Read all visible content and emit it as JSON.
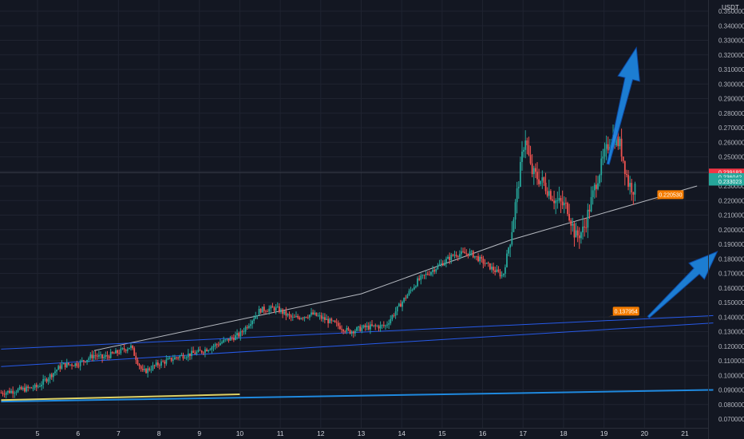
{
  "chart_data": {
    "type": "candlestick",
    "currency": "USDT",
    "ylim": [
      0.065,
      0.355
    ],
    "y_ticks": [
      0.07,
      0.08,
      0.09,
      0.1,
      0.11,
      0.12,
      0.13,
      0.14,
      0.15,
      0.16,
      0.17,
      0.18,
      0.19,
      0.2,
      0.21,
      0.22,
      0.23,
      0.24,
      0.25,
      0.26,
      0.27,
      0.28,
      0.29,
      0.3,
      0.31,
      0.32,
      0.33,
      0.34,
      0.35
    ],
    "y_tick_labels": [
      "0.070000",
      "0.080000",
      "0.090000",
      "0.100000",
      "0.110000",
      "0.120000",
      "0.130000",
      "0.140000",
      "0.150000",
      "0.160000",
      "0.170000",
      "0.180000",
      "0.190000",
      "0.200000",
      "0.210000",
      "0.220000",
      "0.230000",
      "0.240000",
      "0.250000",
      "0.260000",
      "0.270000",
      "0.280000",
      "0.290000",
      "0.300000",
      "0.310000",
      "0.320000",
      "0.330000",
      "0.340000",
      "0.350000"
    ],
    "x_ticks": [
      "5",
      "6",
      "7",
      "8",
      "9",
      "10",
      "11",
      "12",
      "13",
      "14",
      "15",
      "16",
      "17",
      "18",
      "19",
      "20",
      "21"
    ],
    "xlim": [
      4.1,
      21.7
    ],
    "price_path": [
      [
        4.1,
        0.088
      ],
      [
        5.0,
        0.092
      ],
      [
        5.6,
        0.107
      ],
      [
        6.0,
        0.108
      ],
      [
        6.4,
        0.114
      ],
      [
        6.6,
        0.112
      ],
      [
        7.0,
        0.116
      ],
      [
        7.3,
        0.12
      ],
      [
        7.6,
        0.102
      ],
      [
        8.0,
        0.108
      ],
      [
        8.5,
        0.113
      ],
      [
        9.0,
        0.116
      ],
      [
        9.5,
        0.122
      ],
      [
        10.0,
        0.128
      ],
      [
        10.5,
        0.145
      ],
      [
        10.9,
        0.146
      ],
      [
        11.3,
        0.139
      ],
      [
        11.8,
        0.142
      ],
      [
        12.3,
        0.136
      ],
      [
        12.7,
        0.13
      ],
      [
        13.1,
        0.133
      ],
      [
        13.6,
        0.134
      ],
      [
        14.0,
        0.15
      ],
      [
        14.4,
        0.165
      ],
      [
        14.9,
        0.175
      ],
      [
        15.3,
        0.183
      ],
      [
        15.7,
        0.184
      ],
      [
        16.1,
        0.176
      ],
      [
        16.5,
        0.168
      ],
      [
        16.7,
        0.196
      ],
      [
        16.9,
        0.235
      ],
      [
        17.05,
        0.265
      ],
      [
        17.2,
        0.24
      ],
      [
        17.5,
        0.232
      ],
      [
        17.8,
        0.22
      ],
      [
        18.1,
        0.215
      ],
      [
        18.3,
        0.195
      ],
      [
        18.5,
        0.2
      ],
      [
        18.8,
        0.232
      ],
      [
        19.0,
        0.25
      ],
      [
        19.2,
        0.265
      ],
      [
        19.4,
        0.258
      ],
      [
        19.6,
        0.232
      ],
      [
        19.8,
        0.226
      ]
    ],
    "current_price_labels": [
      "0.239183",
      "0.236042",
      "0.233023"
    ],
    "annotations": [
      {
        "label": "0.220530",
        "x": 20.2,
        "y": 0.2205
      },
      {
        "label": "0.137954",
        "x": 19.1,
        "y": 0.1405
      }
    ],
    "trendlines": [
      {
        "color": "#c8cbd2",
        "points": [
          [
            6.4,
            0.117
          ],
          [
            13.0,
            0.156
          ],
          [
            16.7,
            0.193
          ],
          [
            21.3,
            0.23
          ]
        ]
      },
      {
        "color": "#2962ff",
        "points": [
          [
            4.1,
            0.118
          ],
          [
            21.7,
            0.141
          ]
        ]
      },
      {
        "color": "#2962ff",
        "points": [
          [
            4.1,
            0.106
          ],
          [
            21.7,
            0.136
          ]
        ]
      },
      {
        "color": "#2196f3",
        "points": [
          [
            4.1,
            0.082
          ],
          [
            21.7,
            0.09
          ]
        ]
      },
      {
        "color": "#f5e56b",
        "points": [
          [
            4.1,
            0.083
          ],
          [
            10.0,
            0.087
          ]
        ]
      }
    ],
    "arrows": [
      {
        "from": [
          19.1,
          0.245
        ],
        "to": [
          19.8,
          0.325
        ],
        "color": "#1e88e5"
      },
      {
        "from": [
          20.1,
          0.14
        ],
        "to": [
          21.8,
          0.185
        ],
        "color": "#1e88e5"
      }
    ],
    "colors": {
      "up": "#26a69a",
      "down": "#ef5350",
      "background": "#131722",
      "grid": "#1f2330",
      "price_tag": "#f23645",
      "price_tag_alt": "#26a69a",
      "annotation": "#f57c00"
    }
  }
}
